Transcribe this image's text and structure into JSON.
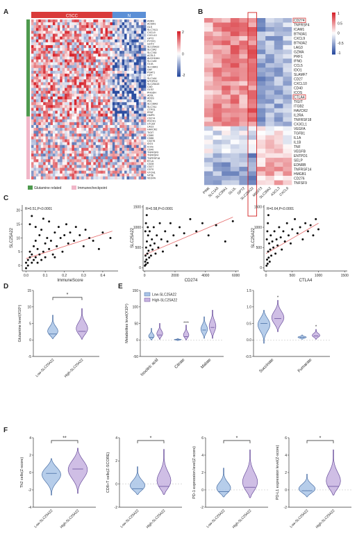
{
  "panels": {
    "A": {
      "letter": "A",
      "groups": [
        "CSCC",
        "N"
      ],
      "scale": [
        "2",
        "0",
        "-2"
      ],
      "genes": [
        "ASNS",
        "ACSM1",
        "GLS",
        "SLC7A11",
        "CXCL9",
        "CXCL10",
        "GPT2",
        "PYCR1",
        "GOT2",
        "SLC25A22",
        "SLC3A2",
        "SLC7A5",
        "ACSL3",
        "ALDH18A1",
        "SLC1A5",
        "GLUL",
        "SLC38A1",
        "OAT",
        "PSAT1",
        "GPT",
        "SLC1A4",
        "MTHFD2",
        "SLC25A15",
        "CAD",
        "GLS2",
        "PHGDH",
        "ADSL",
        "ADSS",
        "ASL",
        "SLC38A2",
        "SLC7A1",
        "CTPS1",
        "PPAT",
        "GMPS",
        "CD274",
        "PDCD1",
        "CTLA4",
        "LAG3",
        "HAVCR2",
        "TIGIT",
        "CD80",
        "CD86",
        "CD276",
        "IDO1",
        "ICOS",
        "CD40",
        "TNFRSF9",
        "TNFRSF4",
        "TNFRSF18",
        "BTLA",
        "CD28",
        "CD27",
        "CD70",
        "VTCN1",
        "NT5E",
        "VEGFA"
      ],
      "legend": [
        "Glutamine related",
        "Immunecheckpoint"
      ],
      "legend_colors": [
        "#4e9a4e",
        "#f1b6c8"
      ]
    },
    "B": {
      "letter": "B",
      "scale": [
        "1",
        "0.5",
        "0",
        "-0.5",
        "-1"
      ],
      "columns": [
        "PINK",
        "SLC1A5",
        "SLC38A1",
        "GLUL",
        "GPT2",
        "SLC25A22",
        "MGST3",
        "SLC38A2",
        "ASCL3",
        "CXCL9"
      ],
      "highlight_column": "SLC25A22",
      "rows": [
        "CD274",
        "TNFRSF4",
        "ICAM1",
        "BTN3A1",
        "CXCL9",
        "BTN3A2",
        "LAG3",
        "GZMA",
        "PRF1",
        "IFNG",
        "CCL5",
        "IDO1",
        "SLAMF7",
        "CD27",
        "CXCL10",
        "CD40",
        "ICOS",
        "CTLA4",
        "TIGIT",
        "ITGB2",
        "HAVCR2",
        "IL2RA",
        "TNFRSF18",
        "CX3CL1",
        "VEGFA",
        "TGFB1",
        "IL1A",
        "IL1B",
        "TNF",
        "VEGFB",
        "ENTPD1",
        "SELP",
        "EDNRB",
        "TNFRSF14",
        "HMGB1",
        "CD276",
        "TNFSF9"
      ],
      "boxed_rows": [
        "CD274",
        "CTLA4"
      ]
    },
    "C": {
      "letter": "C",
      "charts": [
        {
          "stat": "R=0.51,P<0.0001",
          "xlabel": "ImmuneScore",
          "ylabel": "SLC25A22",
          "xticks": [
            "0.0",
            "0.1",
            "0.2",
            "0.3",
            "0.4"
          ],
          "yticks": [
            "0",
            "5",
            "10",
            "15",
            "20"
          ]
        },
        {
          "stat": "R=0.58,P<0.0001",
          "xlabel": "CD274",
          "ylabel": "SLC25A22",
          "xticks": [
            "0",
            "2000",
            "4000",
            "6000"
          ],
          "yticks": [
            "0",
            "500",
            "1000",
            "1500"
          ]
        },
        {
          "stat": "R=0.64,P<0.0001",
          "xlabel": "CTLA4",
          "ylabel": "SLC25A22",
          "xticks": [
            "0",
            "500",
            "1000",
            "1500"
          ],
          "yticks": [
            "0",
            "500",
            "1000",
            "1500"
          ]
        }
      ]
    },
    "D": {
      "letter": "D",
      "ylabel": "Glutamine level(X10⁵)",
      "yticks": [
        "15",
        "10",
        "5",
        "0",
        "-5"
      ],
      "groups": [
        "Low-SLC25A22",
        "High-SLC25A22"
      ],
      "sig": "*"
    },
    "E": {
      "letter": "E",
      "ylabel": "Metabolites level(X10⁵)",
      "legend": [
        "Low-SLC25A22",
        "High-SLC25A22"
      ],
      "left_yticks": [
        "150",
        "100",
        "50",
        "0",
        "-50"
      ],
      "left_categories": [
        "Isocitric acid",
        "Citrate",
        "Malate"
      ],
      "right_yticks": [
        "1.5",
        "1.0",
        "0.5",
        "0.0",
        "-0.5"
      ],
      "right_categories": [
        "Succinate",
        "Fumarate"
      ],
      "sig_marks": [
        "****",
        "*",
        "*"
      ]
    },
    "F": {
      "letter": "F",
      "groups": [
        "Low-SLC25A22",
        "High-SLC25A22"
      ],
      "charts": [
        {
          "ylabel": "Th2 cells(Z-score)",
          "yticks": [
            "4",
            "2",
            "0",
            "-2",
            "-4"
          ],
          "sig": "**"
        },
        {
          "ylabel": "CD8+T cells(Z-SCORE)",
          "yticks": [
            "4",
            "2",
            "0",
            "-2"
          ],
          "sig": "*"
        },
        {
          "ylabel": "PD-1 expression level(Z-score)",
          "yticks": [
            "6",
            "4",
            "2",
            "0",
            "-2"
          ],
          "sig": "*"
        },
        {
          "ylabel": "PD-L1 expression level(Z-score)",
          "yticks": [
            "6",
            "4",
            "2",
            "0",
            "-2"
          ],
          "sig": "*"
        }
      ]
    }
  },
  "colors": {
    "low": "#a9c4e6",
    "low_edge": "#4a6fa5",
    "high": "#c7b3e0",
    "high_edge": "#6a4f9c",
    "heat_red": "#d7262e",
    "heat_blue": "#2b4da0",
    "regression": "#e66a6a"
  },
  "chart_data": [
    {
      "type": "heatmap",
      "panel": "A",
      "columns_groups": [
        "CSCC",
        "N"
      ],
      "row_labels_ref": "panels.A.genes",
      "color_range": [
        -2,
        2
      ]
    },
    {
      "type": "heatmap",
      "panel": "B",
      "color_range": [
        -1,
        1
      ],
      "x_labels_ref": "panels.B.columns",
      "y_labels_ref": "panels.B.rows"
    },
    {
      "type": "scatter",
      "panel": "C1",
      "xlabel": "ImmuneScore",
      "ylabel": "SLC25A22",
      "xlim": [
        -0.02,
        0.48
      ],
      "ylim": [
        -2,
        22
      ],
      "points": [
        [
          0.0,
          1
        ],
        [
          0.01,
          2
        ],
        [
          0.01,
          0
        ],
        [
          0.02,
          3
        ],
        [
          0.02,
          5
        ],
        [
          0.03,
          1
        ],
        [
          0.03,
          4
        ],
        [
          0.04,
          2
        ],
        [
          0.04,
          7
        ],
        [
          0.05,
          3
        ],
        [
          0.05,
          9
        ],
        [
          0.06,
          1
        ],
        [
          0.06,
          6
        ],
        [
          0.07,
          11
        ],
        [
          0.07,
          4
        ],
        [
          0.08,
          2
        ],
        [
          0.08,
          13
        ],
        [
          0.09,
          5
        ],
        [
          0.1,
          8
        ],
        [
          0.1,
          3
        ],
        [
          0.11,
          10
        ],
        [
          0.12,
          6
        ],
        [
          0.12,
          16
        ],
        [
          0.13,
          9
        ],
        [
          0.14,
          4
        ],
        [
          0.15,
          12
        ],
        [
          0.16,
          7
        ],
        [
          0.17,
          14
        ],
        [
          0.18,
          10
        ],
        [
          0.19,
          5
        ],
        [
          0.2,
          11
        ],
        [
          0.21,
          15
        ],
        [
          0.22,
          8
        ],
        [
          0.23,
          12
        ],
        [
          0.25,
          9
        ],
        [
          0.26,
          14
        ],
        [
          0.28,
          11
        ],
        [
          0.3,
          7
        ],
        [
          0.31,
          13
        ],
        [
          0.33,
          10
        ],
        [
          0.35,
          9
        ],
        [
          0.38,
          6
        ],
        [
          0.4,
          12
        ],
        [
          0.44,
          10
        ],
        [
          0.02,
          15
        ],
        [
          0.03,
          18
        ],
        [
          0.05,
          14
        ],
        [
          0.09,
          17
        ],
        [
          0.0,
          -1
        ],
        [
          0.15,
          3
        ]
      ],
      "fit": [
        [
          0.0,
          2.5
        ],
        [
          0.45,
          12.5
        ]
      ]
    },
    {
      "type": "scatter",
      "panel": "C2",
      "xlabel": "CD274",
      "ylabel": "SLC25A22",
      "xlim": [
        -100,
        6200
      ],
      "ylim": [
        -80,
        1550
      ],
      "points": [
        [
          20,
          50
        ],
        [
          40,
          150
        ],
        [
          60,
          300
        ],
        [
          80,
          80
        ],
        [
          100,
          500
        ],
        [
          120,
          200
        ],
        [
          150,
          650
        ],
        [
          180,
          350
        ],
        [
          200,
          120
        ],
        [
          230,
          800
        ],
        [
          260,
          420
        ],
        [
          300,
          250
        ],
        [
          330,
          900
        ],
        [
          380,
          550
        ],
        [
          420,
          300
        ],
        [
          480,
          700
        ],
        [
          520,
          450
        ],
        [
          600,
          1000
        ],
        [
          650,
          600
        ],
        [
          720,
          350
        ],
        [
          800,
          800
        ],
        [
          900,
          500
        ],
        [
          1000,
          1100
        ],
        [
          1100,
          700
        ],
        [
          1200,
          400
        ],
        [
          1350,
          900
        ],
        [
          1500,
          650
        ],
        [
          1700,
          1100
        ],
        [
          1900,
          800
        ],
        [
          2100,
          550
        ],
        [
          2300,
          1000
        ],
        [
          2600,
          850
        ],
        [
          3000,
          1200
        ],
        [
          3400,
          900
        ],
        [
          3800,
          1100
        ],
        [
          4200,
          800
        ],
        [
          4700,
          1050
        ],
        [
          5300,
          650
        ],
        [
          5800,
          1150
        ],
        [
          50,
          900
        ],
        [
          90,
          1100
        ],
        [
          140,
          1300
        ],
        [
          210,
          1000
        ]
      ],
      "fit": [
        [
          0,
          320
        ],
        [
          5800,
          1250
        ]
      ]
    },
    {
      "type": "scatter",
      "panel": "C3",
      "xlabel": "CTLA4",
      "ylabel": "SLC25A22",
      "xlim": [
        -40,
        1550
      ],
      "ylim": [
        -80,
        1550
      ],
      "points": [
        [
          10,
          50
        ],
        [
          20,
          200
        ],
        [
          30,
          100
        ],
        [
          40,
          400
        ],
        [
          50,
          250
        ],
        [
          60,
          600
        ],
        [
          70,
          150
        ],
        [
          80,
          450
        ],
        [
          90,
          800
        ],
        [
          100,
          300
        ],
        [
          120,
          650
        ],
        [
          140,
          500
        ],
        [
          160,
          900
        ],
        [
          180,
          350
        ],
        [
          200,
          700
        ],
        [
          220,
          550
        ],
        [
          250,
          1000
        ],
        [
          280,
          750
        ],
        [
          300,
          450
        ],
        [
          330,
          900
        ],
        [
          360,
          650
        ],
        [
          400,
          1100
        ],
        [
          430,
          800
        ],
        [
          470,
          600
        ],
        [
          500,
          950
        ],
        [
          550,
          1200
        ],
        [
          600,
          850
        ],
        [
          650,
          1000
        ],
        [
          700,
          700
        ],
        [
          750,
          1100
        ],
        [
          800,
          900
        ],
        [
          850,
          1050
        ],
        [
          900,
          800
        ],
        [
          950,
          1200
        ],
        [
          1000,
          950
        ],
        [
          15,
          700
        ],
        [
          25,
          900
        ],
        [
          35,
          1100
        ],
        [
          45,
          1300
        ]
      ],
      "fit": [
        [
          0,
          350
        ],
        [
          1000,
          1100
        ]
      ]
    },
    {
      "type": "violin",
      "panel": "D",
      "categories": [
        "Low-SLC25A22",
        "High-SLC25A22"
      ],
      "ylim": [
        -5,
        15
      ],
      "medians": [
        1.8,
        2.6
      ],
      "ranges": [
        [
          0.4,
          7.5
        ],
        [
          0.2,
          9.5
        ]
      ]
    },
    {
      "type": "violin",
      "panel": "E-left",
      "categories": [
        "Isocitric acid",
        "Citrate",
        "Malate"
      ],
      "series": [
        {
          "name": "Low-SLC25A22",
          "medians": [
            8,
            1,
            30
          ],
          "ranges": [
            [
              0,
              35
            ],
            [
              -2,
              4
            ],
            [
              5,
              70
            ]
          ]
        },
        {
          "name": "High-SLC25A22",
          "medians": [
            15,
            10,
            38
          ],
          "ranges": [
            [
              2,
              50
            ],
            [
              0,
              45
            ],
            [
              5,
              90
            ]
          ]
        }
      ],
      "ylim": [
        -50,
        150
      ]
    },
    {
      "type": "violin",
      "panel": "E-right",
      "categories": [
        "Succinate",
        "Fumarate"
      ],
      "series": [
        {
          "name": "Low-SLC25A22",
          "medians": [
            0.5,
            0.08
          ],
          "ranges": [
            [
              -0.1,
              0.9
            ],
            [
              0.02,
              0.15
            ]
          ]
        },
        {
          "name": "High-SLC25A22",
          "medians": [
            0.65,
            0.12
          ],
          "ranges": [
            [
              0.25,
              1.2
            ],
            [
              0.02,
              0.32
            ]
          ]
        }
      ],
      "ylim": [
        -0.5,
        1.5
      ]
    },
    {
      "type": "violin",
      "panel": "F",
      "categories": [
        "Low-SLC25A22",
        "High-SLC25A22"
      ],
      "charts": [
        {
          "ylim": [
            -4,
            4
          ],
          "medians": [
            -0.1,
            0.4
          ],
          "ranges": [
            [
              -2.6,
              1.6
            ],
            [
              -2.4,
              2.8
            ]
          ]
        },
        {
          "ylim": [
            -2,
            4
          ],
          "medians": [
            -0.4,
            -0.2
          ],
          "ranges": [
            [
              -0.9,
              1.5
            ],
            [
              -0.9,
              3.0
            ]
          ]
        },
        {
          "ylim": [
            -2,
            6
          ],
          "medians": [
            -0.2,
            0.3
          ],
          "ranges": [
            [
              -0.8,
              2.5
            ],
            [
              -0.9,
              4.6
            ]
          ]
        },
        {
          "ylim": [
            -2,
            6
          ],
          "medians": [
            -0.1,
            0.4
          ],
          "ranges": [
            [
              -0.8,
              1.8
            ],
            [
              -0.6,
              4.6
            ]
          ]
        }
      ]
    }
  ]
}
